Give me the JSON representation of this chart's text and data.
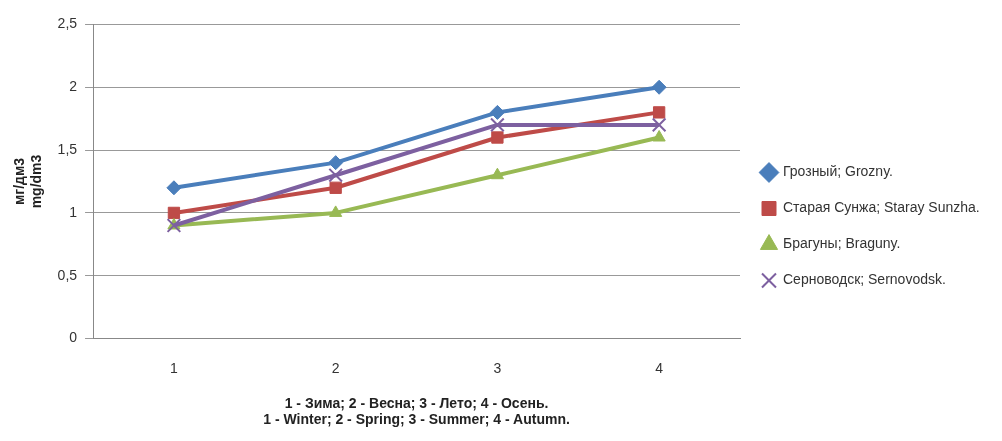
{
  "chart_data": {
    "type": "line",
    "xlabel": "1 - Зима; 2 - Весна; 3 - Лето; 4 - Осень.\n1 - Winter; 2 - Spring; 3 - Summer; 4 - Autumn.",
    "ylabel": "мг/дм3\nmg/dm3",
    "categories": [
      "1",
      "2",
      "3",
      "4"
    ],
    "series": [
      {
        "name": "Грозный; Grozny.",
        "color": "#4a7ebb",
        "marker": "diamond",
        "values": [
          1.2,
          1.4,
          1.8,
          2.0
        ]
      },
      {
        "name": "Старая Сунжа; Staray Sunzha.",
        "color": "#be4b48",
        "marker": "square",
        "values": [
          1.0,
          1.2,
          1.6,
          1.8
        ]
      },
      {
        "name": "Брагуны; Braguny.",
        "color": "#98b954",
        "marker": "triangle",
        "values": [
          0.9,
          1.0,
          1.3,
          1.6
        ]
      },
      {
        "name": "Серноводск; Sernovodsk.",
        "color": "#7d60a0",
        "marker": "cross",
        "values": [
          0.9,
          1.3,
          1.7,
          1.7
        ]
      }
    ],
    "ylim": [
      0,
      2.5
    ],
    "yticks": [
      0,
      {
        "value": 0.5,
        "label": "0,5"
      },
      1,
      {
        "value": 1.5,
        "label": "1,5"
      },
      2,
      {
        "value": 2.5,
        "label": "2,5"
      }
    ],
    "grid": "y",
    "legend": "right",
    "line_style": "solid"
  }
}
